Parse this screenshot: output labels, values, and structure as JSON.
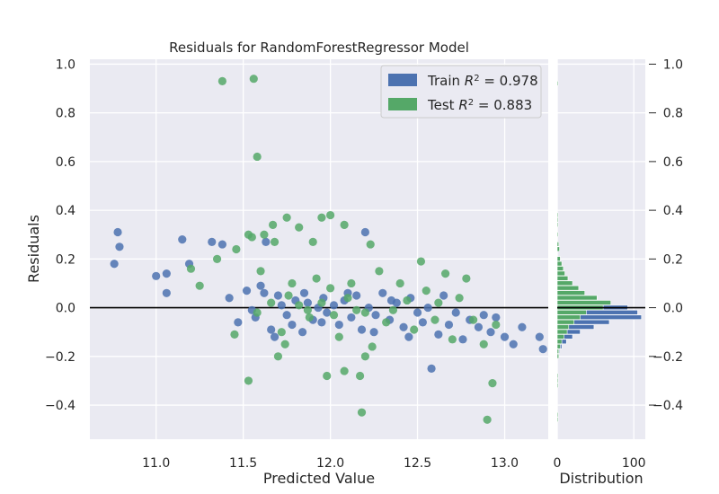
{
  "chart_data": {
    "type": "scatter",
    "title": "Residuals for RandomForestRegressor Model",
    "xlabel": "Predicted Value",
    "ylabel": "Residuals",
    "xlim": [
      10.62,
      13.25
    ],
    "ylim": [
      -0.54,
      1.02
    ],
    "xticks": [
      "11.0",
      "11.5",
      "12.0",
      "12.5",
      "13.0"
    ],
    "yticks": [
      "−0.4",
      "−0.2",
      "0.0",
      "0.2",
      "0.4",
      "0.6",
      "0.8",
      "1.0"
    ],
    "zero_line": 0.0,
    "grid": true,
    "legend_position": "top-right",
    "colors": {
      "train": "#4C72B0",
      "test": "#55A868",
      "background": "#EAEAF2",
      "grid": "#ffffff",
      "zero_line": "#000000"
    },
    "series": [
      {
        "name": "Train",
        "legend_label": "Train R² = 0.978",
        "points": [
          [
            10.76,
            0.18
          ],
          [
            10.78,
            0.31
          ],
          [
            10.79,
            0.25
          ],
          [
            11.0,
            0.13
          ],
          [
            11.06,
            0.14
          ],
          [
            11.06,
            0.06
          ],
          [
            11.15,
            0.28
          ],
          [
            11.19,
            0.18
          ],
          [
            11.32,
            0.27
          ],
          [
            11.38,
            0.26
          ],
          [
            11.42,
            0.04
          ],
          [
            11.47,
            -0.06
          ],
          [
            11.52,
            0.07
          ],
          [
            11.55,
            -0.01
          ],
          [
            11.57,
            -0.04
          ],
          [
            11.6,
            0.09
          ],
          [
            11.62,
            0.06
          ],
          [
            11.63,
            0.27
          ],
          [
            11.66,
            -0.09
          ],
          [
            11.7,
            0.05
          ],
          [
            11.72,
            0.01
          ],
          [
            11.75,
            -0.03
          ],
          [
            11.78,
            -0.07
          ],
          [
            11.8,
            0.03
          ],
          [
            11.84,
            -0.1
          ],
          [
            11.87,
            0.02
          ],
          [
            11.9,
            -0.05
          ],
          [
            11.93,
            0.0
          ],
          [
            11.96,
            0.04
          ],
          [
            11.98,
            -0.02
          ],
          [
            12.02,
            0.01
          ],
          [
            12.05,
            -0.07
          ],
          [
            12.08,
            0.03
          ],
          [
            12.12,
            -0.04
          ],
          [
            12.15,
            0.05
          ],
          [
            12.18,
            -0.09
          ],
          [
            12.2,
            0.31
          ],
          [
            12.22,
            0.0
          ],
          [
            12.26,
            -0.03
          ],
          [
            12.3,
            0.06
          ],
          [
            12.34,
            -0.05
          ],
          [
            12.38,
            0.02
          ],
          [
            12.42,
            -0.08
          ],
          [
            12.46,
            0.04
          ],
          [
            12.5,
            -0.02
          ],
          [
            12.53,
            -0.06
          ],
          [
            12.56,
            0.0
          ],
          [
            12.58,
            -0.25
          ],
          [
            12.62,
            -0.11
          ],
          [
            12.65,
            0.05
          ],
          [
            12.68,
            -0.07
          ],
          [
            12.72,
            -0.02
          ],
          [
            12.76,
            -0.13
          ],
          [
            12.8,
            -0.05
          ],
          [
            12.85,
            -0.08
          ],
          [
            12.88,
            -0.03
          ],
          [
            12.92,
            -0.1
          ],
          [
            12.95,
            -0.04
          ],
          [
            13.0,
            -0.12
          ],
          [
            13.05,
            -0.15
          ],
          [
            13.1,
            -0.08
          ],
          [
            13.2,
            -0.12
          ],
          [
            13.22,
            -0.17
          ],
          [
            11.85,
            0.06
          ],
          [
            11.95,
            -0.06
          ],
          [
            12.25,
            -0.1
          ],
          [
            12.35,
            0.03
          ],
          [
            12.1,
            0.06
          ],
          [
            11.68,
            -0.12
          ],
          [
            12.45,
            -0.12
          ]
        ]
      },
      {
        "name": "Test",
        "legend_label": "Test R² = 0.883",
        "points": [
          [
            11.38,
            0.93
          ],
          [
            11.56,
            0.94
          ],
          [
            11.58,
            0.62
          ],
          [
            11.53,
            0.3
          ],
          [
            11.55,
            0.29
          ],
          [
            11.53,
            -0.3
          ],
          [
            11.67,
            0.34
          ],
          [
            11.75,
            0.37
          ],
          [
            11.95,
            0.37
          ],
          [
            12.0,
            0.38
          ],
          [
            12.08,
            0.34
          ],
          [
            12.23,
            0.26
          ],
          [
            11.46,
            0.24
          ],
          [
            11.62,
            0.3
          ],
          [
            11.68,
            0.27
          ],
          [
            11.82,
            0.33
          ],
          [
            11.9,
            0.27
          ],
          [
            12.18,
            -0.43
          ],
          [
            12.9,
            -0.46
          ],
          [
            12.93,
            -0.31
          ],
          [
            12.17,
            -0.28
          ],
          [
            11.98,
            -0.28
          ],
          [
            12.08,
            -0.26
          ],
          [
            12.2,
            -0.2
          ],
          [
            11.7,
            -0.2
          ],
          [
            11.2,
            0.16
          ],
          [
            11.35,
            0.2
          ],
          [
            11.25,
            0.09
          ],
          [
            11.45,
            -0.11
          ],
          [
            11.6,
            0.15
          ],
          [
            11.72,
            -0.1
          ],
          [
            11.78,
            0.1
          ],
          [
            11.88,
            -0.04
          ],
          [
            11.92,
            0.12
          ],
          [
            12.0,
            0.08
          ],
          [
            12.05,
            -0.12
          ],
          [
            12.12,
            0.1
          ],
          [
            12.2,
            -0.02
          ],
          [
            12.28,
            0.15
          ],
          [
            12.32,
            -0.06
          ],
          [
            12.4,
            0.1
          ],
          [
            12.48,
            -0.09
          ],
          [
            12.55,
            0.07
          ],
          [
            12.6,
            -0.05
          ],
          [
            12.66,
            0.14
          ],
          [
            12.7,
            -0.13
          ],
          [
            12.78,
            0.12
          ],
          [
            12.82,
            -0.05
          ],
          [
            12.88,
            -0.15
          ],
          [
            12.95,
            -0.07
          ],
          [
            11.82,
            0.01
          ],
          [
            11.87,
            -0.01
          ],
          [
            11.95,
            0.02
          ],
          [
            12.02,
            -0.03
          ],
          [
            12.1,
            0.04
          ],
          [
            12.15,
            -0.01
          ],
          [
            11.76,
            0.05
          ],
          [
            12.36,
            -0.01
          ],
          [
            12.44,
            0.03
          ],
          [
            11.66,
            0.02
          ],
          [
            11.58,
            -0.02
          ],
          [
            12.62,
            0.02
          ],
          [
            12.74,
            0.04
          ],
          [
            11.74,
            -0.15
          ],
          [
            12.24,
            -0.16
          ],
          [
            12.52,
            0.19
          ]
        ]
      }
    ],
    "distribution": {
      "xlabel": "Distribution",
      "xlim": [
        0,
        115
      ],
      "xticks": [
        "0",
        "100"
      ],
      "bin_width": 0.02,
      "train_bins": [
        [
          -0.04,
          110
        ],
        [
          -0.02,
          105
        ],
        [
          -0.06,
          68
        ],
        [
          -0.08,
          48
        ],
        [
          -0.1,
          30
        ],
        [
          0.0,
          92
        ],
        [
          -0.12,
          20
        ],
        [
          -0.14,
          12
        ],
        [
          0.02,
          40
        ],
        [
          -0.16,
          6
        ],
        [
          0.04,
          18
        ],
        [
          -0.18,
          3
        ],
        [
          0.06,
          8
        ]
      ],
      "test_bins": [
        [
          -0.46,
          1
        ],
        [
          -0.44,
          1
        ],
        [
          -0.32,
          1
        ],
        [
          -0.3,
          1
        ],
        [
          -0.28,
          1
        ],
        [
          -0.2,
          2
        ],
        [
          -0.18,
          2
        ],
        [
          -0.16,
          4
        ],
        [
          -0.14,
          6
        ],
        [
          -0.12,
          9
        ],
        [
          -0.1,
          13
        ],
        [
          -0.08,
          15
        ],
        [
          -0.06,
          22
        ],
        [
          -0.04,
          30
        ],
        [
          -0.02,
          38
        ],
        [
          0.0,
          60
        ],
        [
          0.02,
          70
        ],
        [
          0.04,
          52
        ],
        [
          0.06,
          36
        ],
        [
          0.08,
          28
        ],
        [
          0.1,
          20
        ],
        [
          0.12,
          14
        ],
        [
          0.14,
          10
        ],
        [
          0.16,
          8
        ],
        [
          0.18,
          6
        ],
        [
          0.2,
          4
        ],
        [
          0.24,
          3
        ],
        [
          0.26,
          2
        ],
        [
          0.3,
          1
        ],
        [
          0.34,
          1
        ],
        [
          0.36,
          1
        ],
        [
          0.38,
          1
        ],
        [
          0.92,
          1
        ]
      ]
    }
  }
}
